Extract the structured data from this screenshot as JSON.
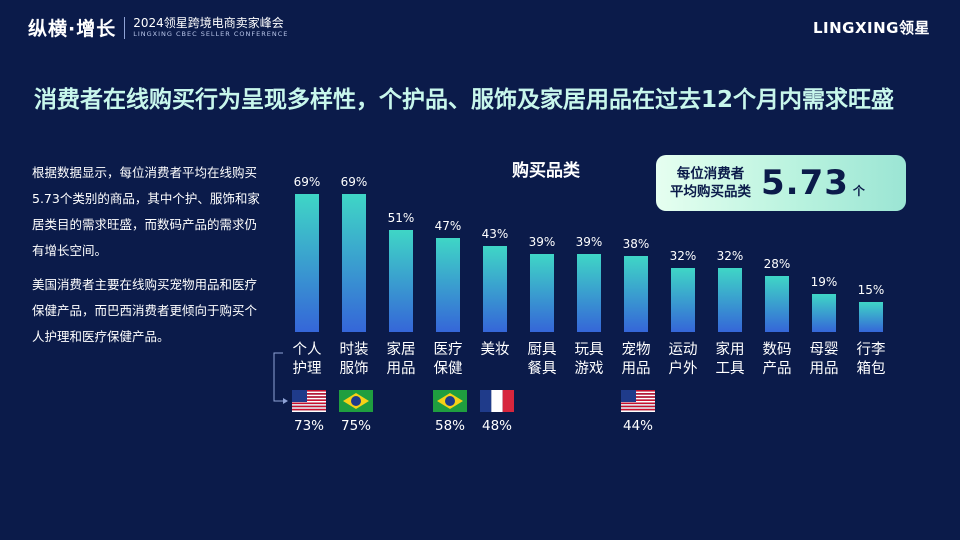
{
  "header": {
    "logo_text": "纵横·增长",
    "event_cn": "2024领星跨境电商卖家峰会",
    "event_en": "LINGXING CBEC SELLER CONFERENCE",
    "brand": "LINGXING领星"
  },
  "headline": "消费者在线购买行为呈现多样性，个护品、服饰及家居用品在过去12个月内需求旺盛",
  "body": {
    "p1": "根据数据显示，每位消费者平均在线购买5.73个类别的商品，其中个护、服饰和家居类目的需求旺盛，而数码产品的需求仍有增长空间。",
    "p2": "美国消费者主要在线购买宠物用品和医疗保健产品，而巴西消费者更倾向于购买个人护理和医疗保健产品。"
  },
  "stat": {
    "label_line1": "每位消费者",
    "label_line2": "平均购买品类",
    "value": "5.73",
    "unit": "个"
  },
  "chart_data": {
    "type": "bar",
    "title": "购买品类",
    "categories": [
      [
        "个人",
        "护理"
      ],
      [
        "时装",
        "服饰"
      ],
      [
        "家居",
        "用品"
      ],
      [
        "医疗",
        "保健"
      ],
      [
        "美妆"
      ],
      [
        "厨具",
        "餐具"
      ],
      [
        "玩具",
        "游戏"
      ],
      [
        "宠物",
        "用品"
      ],
      [
        "运动",
        "户外"
      ],
      [
        "家用",
        "工具"
      ],
      [
        "数码",
        "产品"
      ],
      [
        "母婴",
        "用品"
      ],
      [
        "行李",
        "箱包"
      ]
    ],
    "values": [
      69,
      69,
      51,
      47,
      43,
      39,
      39,
      38,
      32,
      32,
      28,
      19,
      15
    ],
    "value_labels": [
      "69%",
      "69%",
      "51%",
      "47%",
      "43%",
      "39%",
      "39%",
      "38%",
      "32%",
      "32%",
      "28%",
      "19%",
      "15%"
    ],
    "ylim": [
      0,
      75
    ],
    "bar_gradient": [
      "#3fd6c6",
      "#3566d8"
    ],
    "country_annotations": [
      {
        "category_index": 0,
        "country": "us",
        "label": "73%"
      },
      {
        "category_index": 1,
        "country": "br",
        "label": "75%"
      },
      {
        "category_index": 3,
        "country": "br",
        "label": "58%"
      },
      {
        "category_index": 4,
        "country": "fr",
        "label": "48%"
      },
      {
        "category_index": 7,
        "country": "us",
        "label": "44%"
      }
    ]
  }
}
